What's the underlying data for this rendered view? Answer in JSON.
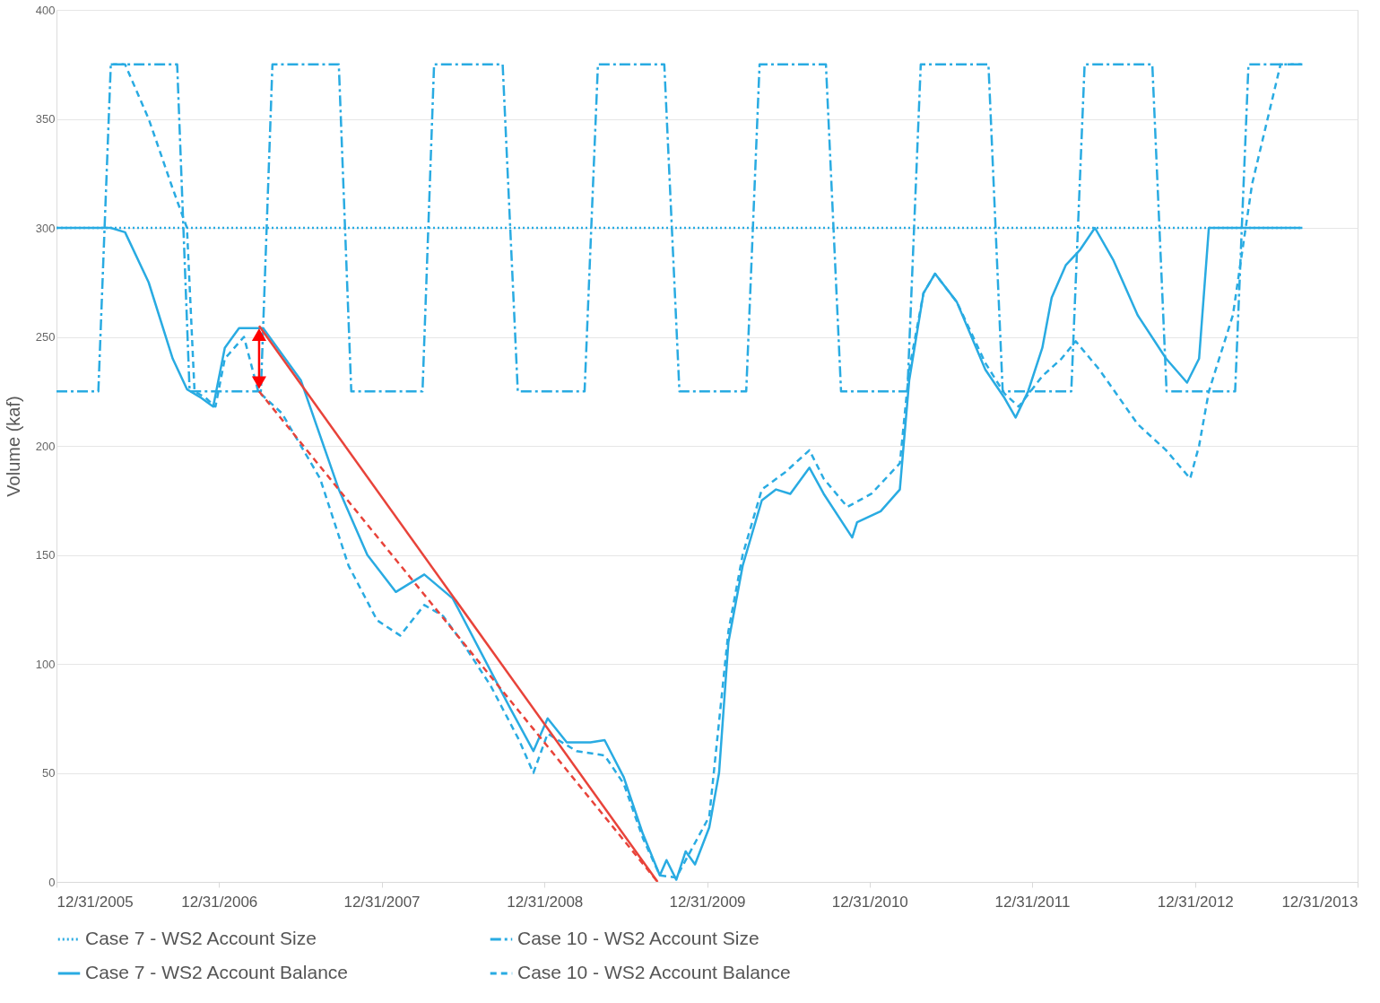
{
  "chart_data": {
    "type": "line",
    "ylabel": "Volume (kaf)",
    "ylim": [
      0,
      400
    ],
    "yticks": [
      0,
      50,
      100,
      150,
      200,
      250,
      300,
      350,
      400
    ],
    "xlim": [
      "2005-12-31",
      "2013-12-31"
    ],
    "xticks": [
      {
        "value": "2005-12-31",
        "label": "12/31/2005"
      },
      {
        "value": "2006-12-31",
        "label": "12/31/2006"
      },
      {
        "value": "2007-12-31",
        "label": "12/31/2007"
      },
      {
        "value": "2008-12-31",
        "label": "12/31/2008"
      },
      {
        "value": "2009-12-31",
        "label": "12/31/2009"
      },
      {
        "value": "2010-12-31",
        "label": "12/31/2010"
      },
      {
        "value": "2011-12-31",
        "label": "12/31/2011"
      },
      {
        "value": "2012-12-31",
        "label": "12/31/2012"
      },
      {
        "value": "2013-12-31",
        "label": "12/31/2013"
      }
    ],
    "grid": "y",
    "legend": "bottom",
    "series": [
      {
        "name": "Case 7 - WS2 Account Size",
        "color": "#29abe2",
        "line_style": "dotted",
        "x": [
          "2005-12-31",
          "2013-08-29"
        ],
        "values": [
          300,
          300
        ]
      },
      {
        "name": "Case 10 - WS2 Account Size",
        "color": "#29abe2",
        "line_style": "dashdot",
        "x": [
          "2005-12-31",
          "2006-04-04",
          "2006-05-02",
          "2006-09-28",
          "2006-10-26",
          "2007-04-04",
          "2007-04-30",
          "2007-09-26",
          "2007-10-24",
          "2008-04-01",
          "2008-04-27",
          "2008-09-28",
          "2008-11-01",
          "2009-03-31",
          "2009-04-30",
          "2009-09-26",
          "2009-10-30",
          "2010-03-29",
          "2010-04-28",
          "2010-09-24",
          "2010-10-28",
          "2011-03-26",
          "2011-04-25",
          "2011-09-24",
          "2011-10-26",
          "2012-03-28",
          "2012-04-27",
          "2012-09-26",
          "2012-10-28",
          "2013-03-31",
          "2013-04-30",
          "2013-08-29"
        ],
        "values": [
          225,
          225,
          375,
          375,
          225,
          225,
          375,
          375,
          225,
          225,
          375,
          375,
          225,
          225,
          375,
          375,
          225,
          225,
          375,
          375,
          225,
          225,
          375,
          375,
          225,
          225,
          375,
          375,
          225,
          225,
          375,
          375
        ]
      },
      {
        "name": "Case 7 - WS2 Account Balance",
        "color": "#29abe2",
        "line_style": "solid",
        "x": [
          "2005-12-31",
          "2006-05-02",
          "2006-06-03",
          "2006-07-26",
          "2006-09-18",
          "2006-10-20",
          "2006-11-21",
          "2006-12-18",
          "2007-01-13",
          "2007-02-14",
          "2007-04-09",
          "2007-07-03",
          "2007-09-26",
          "2007-11-29",
          "2008-02-01",
          "2008-04-05",
          "2008-06-08",
          "2008-08-11",
          "2008-10-14",
          "2008-12-06",
          "2009-01-07",
          "2009-02-19",
          "2009-04-13",
          "2009-05-15",
          "2009-06-27",
          "2009-08-09",
          "2009-09-16",
          "2009-10-01",
          "2009-10-23",
          "2009-11-13",
          "2009-12-04",
          "2010-01-05",
          "2010-01-27",
          "2010-02-17",
          "2010-03-21",
          "2010-05-03",
          "2010-06-04",
          "2010-07-06",
          "2010-08-18",
          "2010-09-19",
          "2010-11-22",
          "2010-12-03",
          "2011-01-25",
          "2011-03-09",
          "2011-03-30",
          "2011-05-01",
          "2011-05-27",
          "2011-07-15",
          "2011-09-17",
          "2011-10-30",
          "2011-11-24",
          "2011-12-22",
          "2012-01-23",
          "2012-02-13",
          "2012-03-16",
          "2012-04-17",
          "2012-05-20",
          "2012-07-01",
          "2012-08-24",
          "2012-10-27",
          "2012-12-13",
          "2013-01-09",
          "2013-01-31",
          "2013-08-29"
        ],
        "values": [
          300,
          300,
          298,
          275,
          240,
          226,
          222,
          218,
          245,
          254,
          254,
          230,
          180,
          150,
          133,
          141,
          130,
          105,
          80,
          60,
          75,
          64,
          64,
          65,
          48,
          22,
          3,
          10,
          1,
          14,
          8,
          25,
          50,
          110,
          145,
          175,
          180,
          178,
          190,
          178,
          158,
          165,
          170,
          180,
          230,
          270,
          279,
          266,
          235,
          222,
          213,
          225,
          245,
          268,
          283,
          290,
          300,
          285,
          260,
          240,
          229,
          240,
          300,
          300
        ]
      },
      {
        "name": "Case 10 - WS2 Account Balance",
        "color": "#29abe2",
        "line_style": "dashed",
        "x": [
          "2006-05-02",
          "2006-06-03",
          "2006-07-26",
          "2006-09-18",
          "2006-10-20",
          "2006-11-06",
          "2006-12-01",
          "2006-12-23",
          "2007-01-13",
          "2007-02-25",
          "2007-03-29",
          "2007-05-21",
          "2007-08-15",
          "2007-10-18",
          "2007-12-21",
          "2008-02-11",
          "2008-04-05",
          "2008-05-17",
          "2008-06-29",
          "2008-09-01",
          "2008-11-04",
          "2008-12-06",
          "2009-01-07",
          "2009-03-13",
          "2009-05-15",
          "2009-06-27",
          "2009-08-09",
          "2009-09-16",
          "2009-10-23",
          "2010-01-05",
          "2010-02-17",
          "2010-03-21",
          "2010-05-03",
          "2010-06-25",
          "2010-08-18",
          "2010-09-19",
          "2010-11-11",
          "2011-01-04",
          "2011-03-09",
          "2011-03-30",
          "2011-05-01",
          "2011-05-27",
          "2011-07-15",
          "2011-09-17",
          "2011-10-30",
          "2011-12-01",
          "2012-01-23",
          "2012-03-06",
          "2012-04-07",
          "2012-05-30",
          "2012-08-24",
          "2012-10-27",
          "2012-12-20",
          "2013-01-09",
          "2013-01-31",
          "2013-03-26",
          "2013-05-08",
          "2013-07-11",
          "2013-08-29"
        ],
        "values": [
          375,
          375,
          350,
          318,
          300,
          225,
          222,
          218,
          240,
          250,
          225,
          215,
          185,
          145,
          120,
          113,
          127,
          122,
          110,
          90,
          65,
          50,
          68,
          60,
          58,
          45,
          20,
          3,
          2,
          30,
          115,
          150,
          180,
          188,
          198,
          185,
          172,
          178,
          192,
          235,
          270,
          279,
          266,
          238,
          224,
          218,
          232,
          240,
          248,
          235,
          210,
          198,
          185,
          200,
          225,
          260,
          320,
          375,
          375
        ]
      },
      {
        "type": "line",
        "color": "#e8433a",
        "line_style": "solid",
        "x": [
          "2007-03-31",
          "2009-09-11"
        ],
        "values": [
          255,
          0
        ]
      },
      {
        "type": "line",
        "color": "#e8433a",
        "line_style": "dashed",
        "x": [
          "2007-03-31",
          "2009-09-11"
        ],
        "values": [
          225,
          0
        ]
      },
      {
        "type": "line",
        "color": "#ff0000",
        "line_style": "solid",
        "marker": "triangle",
        "x": [
          "2007-03-31",
          "2007-03-31"
        ],
        "values": [
          229,
          251
        ]
      }
    ]
  }
}
